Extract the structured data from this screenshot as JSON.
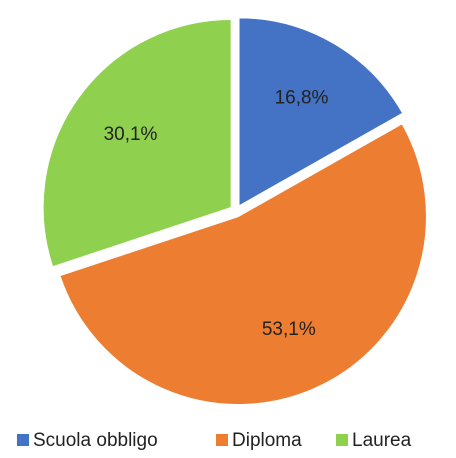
{
  "chart_data": {
    "type": "pie",
    "categories": [
      "Scuola obbligo",
      "Diploma",
      "Laurea"
    ],
    "values": [
      16.8,
      53.1,
      30.1
    ],
    "value_labels": [
      "16,8%",
      "53,1%",
      "30,1%"
    ],
    "colors": [
      "#4472c4",
      "#ed7d31",
      "#8fd14f"
    ],
    "legend": "bottom"
  }
}
